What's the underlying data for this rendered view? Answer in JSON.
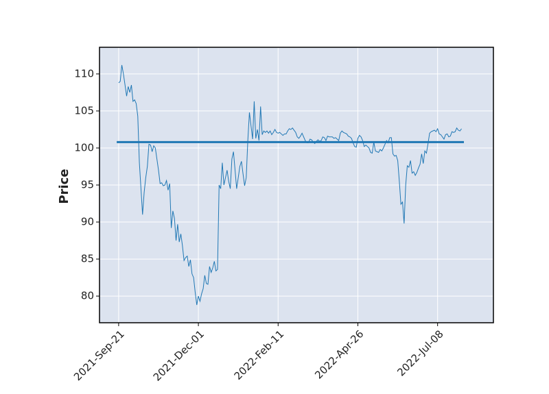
{
  "chart_data": {
    "type": "line",
    "ylabel": "Price",
    "series": [
      {
        "name": "Price",
        "color": "#1f77b4",
        "values": [
          108.8,
          109,
          111.2,
          110,
          108.5,
          107,
          108.3,
          107.5,
          108.5,
          106.3,
          106.5,
          106,
          104.3,
          98,
          94.5,
          91,
          94,
          96,
          97.5,
          100.5,
          100.4,
          99.5,
          100.3,
          100,
          98.5,
          97,
          95.2,
          95.3,
          94.9,
          95,
          95.6,
          94.3,
          95.2,
          89.2,
          91.5,
          90.5,
          87.5,
          89.7,
          87.3,
          88.4,
          86.8,
          84.8,
          85.2,
          85.4,
          84,
          84.9,
          83,
          82.5,
          80.5,
          78.8,
          80,
          79.3,
          80.3,
          81,
          82.8,
          81.7,
          81.6,
          84,
          83.2,
          83.8,
          84.7,
          83.4,
          83.6,
          95,
          94.5,
          98,
          95,
          96,
          97,
          95.5,
          94.5,
          98.5,
          99.5,
          97,
          94.5,
          96,
          97.5,
          98.2,
          96.5,
          94.9,
          96,
          101,
          104.8,
          103,
          101.2,
          106.3,
          101.3,
          102.5,
          101,
          105.6,
          101.8,
          102.3,
          102.1,
          102.3,
          102,
          102.3,
          101.8,
          102.1,
          102.5,
          102.1,
          102,
          102.1,
          101.9,
          101.7,
          101.9,
          101.9,
          102.3,
          102.6,
          102.5,
          102.7,
          102.4,
          102.1,
          101.5,
          101.3,
          101.6,
          102,
          101.5,
          101,
          100.7,
          100.7,
          101.2,
          101.1,
          100.8,
          100.6,
          100.9,
          101.1,
          100.9,
          101,
          101.5,
          101.4,
          101,
          101.6,
          101.5,
          101.5,
          101.5,
          101.3,
          101.4,
          101.2,
          101,
          102,
          102.3,
          102.1,
          102,
          101.9,
          101.6,
          101.5,
          101.3,
          100.7,
          100.2,
          100.1,
          101.3,
          101.7,
          101.5,
          101,
          100.2,
          100.4,
          100.2,
          100,
          99.4,
          99.3,
          100.8,
          99.6,
          99.5,
          99.4,
          99.8,
          99.6,
          100,
          100.5,
          101,
          100.7,
          101.4,
          101.4,
          99.2,
          98.9,
          99,
          98.3,
          95.5,
          92.4,
          92.7,
          89.8,
          95,
          97.6,
          97.4,
          98.3,
          96.6,
          96.8,
          96.3,
          96.7,
          97.3,
          97.8,
          99.2,
          97.9,
          99.6,
          99.3,
          100.6,
          102,
          102.2,
          102.3,
          102.4,
          102.2,
          102.6,
          101.9,
          101.8,
          101.5,
          101.2,
          101.8,
          101.9,
          101.5,
          101.6,
          102.2,
          102.1,
          102.2,
          102.7,
          102.4,
          102.3,
          102.6
        ]
      }
    ],
    "hline": {
      "value": 100.8,
      "color": "#1f77b4"
    },
    "xlim": [
      -12,
      235
    ],
    "xticks": [
      {
        "value": 0,
        "label": "2021-Sep-21"
      },
      {
        "value": 50,
        "label": "2021-Dec-01"
      },
      {
        "value": 100,
        "label": "2022-Feb-11"
      },
      {
        "value": 150,
        "label": "2022-Apr-26"
      },
      {
        "value": 200,
        "label": "2022-Jul-08"
      }
    ],
    "ylim": [
      76.4,
      113.6
    ],
    "yticks": [
      80,
      85,
      90,
      95,
      100,
      105,
      110
    ],
    "grid": true
  }
}
